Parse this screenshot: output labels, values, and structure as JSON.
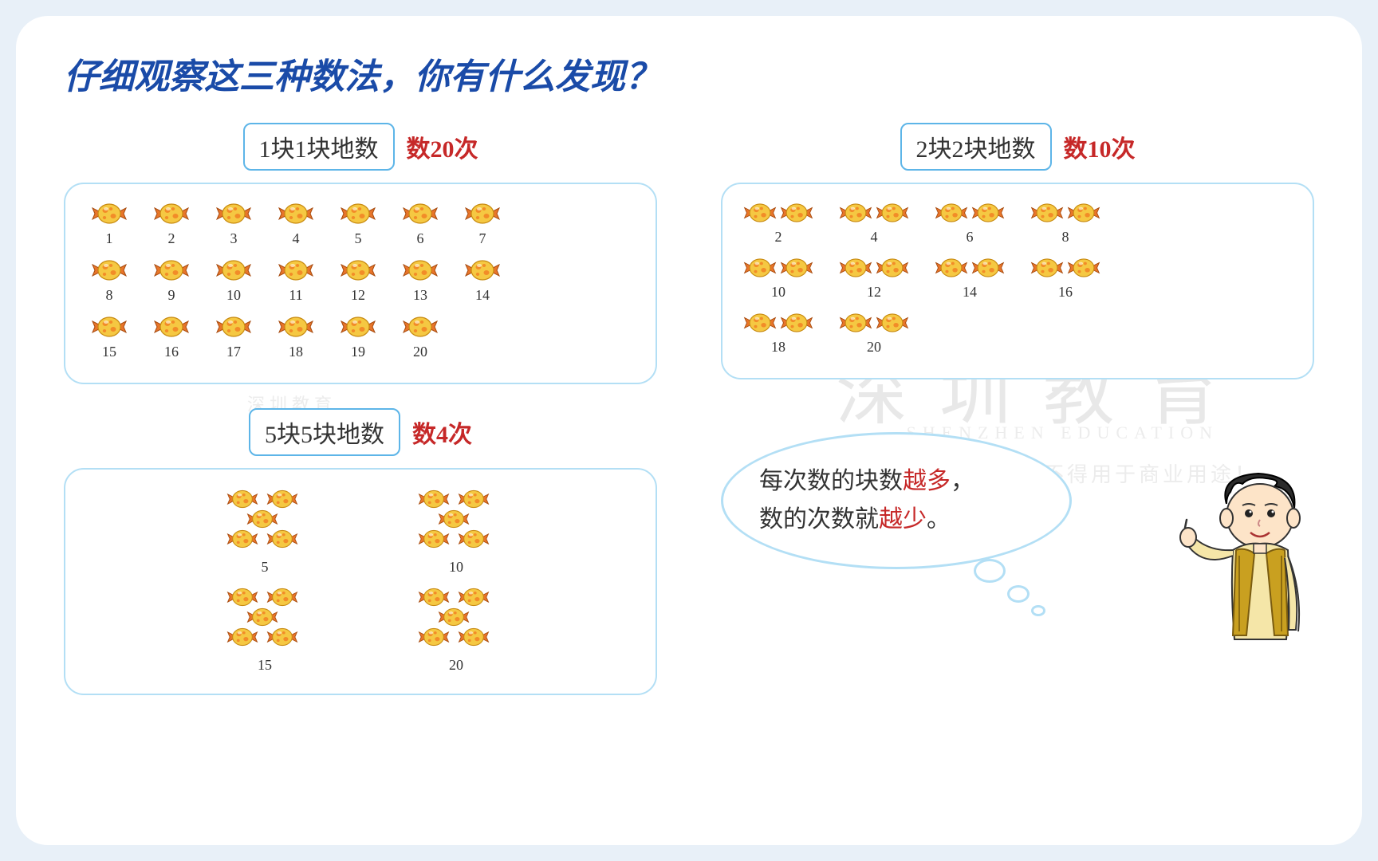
{
  "title": "仔细观察这三种数法，你有什么发现？",
  "method1": {
    "label": "1块1块地数",
    "count": "数20次",
    "numbers": [
      1,
      2,
      3,
      4,
      5,
      6,
      7,
      8,
      9,
      10,
      11,
      12,
      13,
      14,
      15,
      16,
      17,
      18,
      19,
      20
    ],
    "rows": [
      [
        1,
        2,
        3,
        4,
        5,
        6,
        7
      ],
      [
        8,
        9,
        10,
        11,
        12,
        13,
        14
      ],
      [
        15,
        16,
        17,
        18,
        19,
        20
      ]
    ]
  },
  "method2": {
    "label": "2块2块地数",
    "count": "数10次",
    "rows": [
      [
        2,
        4,
        6,
        8
      ],
      [
        10,
        12,
        14,
        16
      ],
      [
        18,
        20
      ]
    ]
  },
  "method3": {
    "label": "5块5块地数",
    "count": "数4次",
    "rows": [
      [
        5,
        10
      ],
      [
        15,
        20
      ]
    ]
  },
  "conclusion": {
    "line1_a": "每次数的块数",
    "line1_b": "越多",
    "line1_c": "，",
    "line2_a": "数的次数就",
    "line2_b": "越少",
    "line2_c": "。"
  },
  "watermark": {
    "big": "深圳教育",
    "sub": "SHENZHEN EDUCATION",
    "disclaimer": "公益免费资源，不得用于商业用途！",
    "small": "深圳教育"
  },
  "colors": {
    "title": "#1a4ba8",
    "border": "#b3dff5",
    "method_border": "#5db5e8",
    "highlight": "#c62828",
    "candy_body": "#f5c842",
    "candy_accent": "#e8752a",
    "candy_spot": "#f28c28"
  },
  "candy_svg": {
    "width": 50,
    "height": 38
  }
}
